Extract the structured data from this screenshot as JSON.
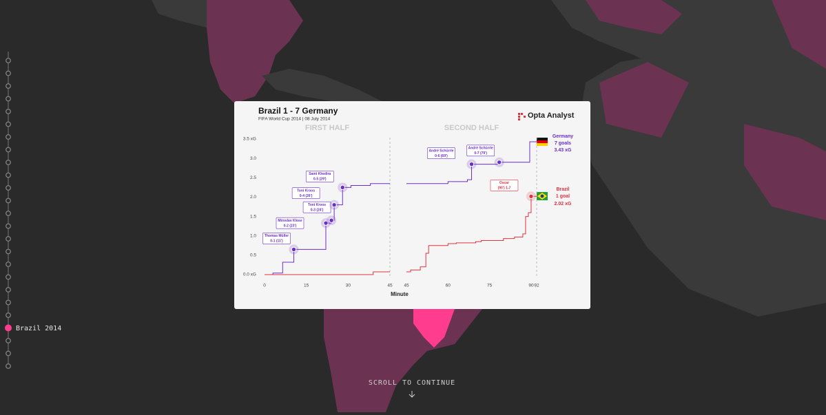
{
  "timeline": {
    "active_label": "Brazil 2014"
  },
  "card": {
    "title": "Brazil 1 - 7 Germany",
    "subtitle": "FIFA World Cup 2014 | 08 July 2014",
    "logo": "Opta Analyst",
    "x_label": "Minute"
  },
  "chart_data": [
    {
      "type": "line",
      "title": "FIRST HALF",
      "xlim": [
        0,
        45
      ],
      "xticks": [
        0,
        15,
        30,
        45
      ],
      "ylim": [
        0,
        3.5
      ],
      "yticks": [
        {
          "value": 0,
          "label": "0.0 xG"
        },
        0.5,
        {
          "value": 1,
          "label": "1.0"
        },
        1.5,
        {
          "value": 2,
          "label": "2.0"
        },
        2.5,
        {
          "value": 3,
          "label": "3.0"
        },
        {
          "value": 3.5,
          "label": "3.5 xG"
        }
      ],
      "series": [
        {
          "color": "#6a2fc7",
          "x": [
            0,
            3,
            6.5,
            10.5,
            22,
            24,
            25,
            28,
            31,
            38,
            45
          ],
          "values": [
            0,
            0.04,
            0.32,
            0.65,
            1.33,
            1.4,
            1.8,
            2.25,
            2.3,
            2.35,
            2.35
          ]
        },
        {
          "color": "#e0323f",
          "x": [
            0,
            39,
            45
          ],
          "values": [
            0,
            0.07,
            0.07
          ]
        }
      ],
      "annotations": [
        {
          "series": 0,
          "x": 10.5,
          "y": 0.65,
          "lines": [
            "Thomas Müller",
            "0-1 (11')"
          ]
        },
        {
          "series": 0,
          "x": 22,
          "y": 1.33,
          "lines": [
            "Miroslav Klose",
            "0-2 (23')"
          ]
        },
        {
          "series": 0,
          "x": 24,
          "y": 1.4,
          "lines": [
            "Toni Kroos",
            "0-3 (24')"
          ]
        },
        {
          "series": 0,
          "x": 25,
          "y": 1.8,
          "lines": [
            "Toni Kroos",
            "0-4 (26')"
          ]
        },
        {
          "series": 0,
          "x": 28,
          "y": 2.25,
          "lines": [
            "Sami Khedira",
            "0-5 (29')"
          ]
        }
      ]
    },
    {
      "type": "line",
      "title": "SECOND HALF",
      "xlim": [
        45,
        92
      ],
      "xticks": [
        45,
        60,
        75,
        90,
        92
      ],
      "ylim": [
        0,
        3.5
      ],
      "series": [
        {
          "name": "Germany",
          "summary": [
            "7 goals",
            "3.43 xG"
          ],
          "color": "#6a2fc7",
          "x": [
            45,
            60,
            67,
            68.5,
            78.5,
            89.5,
            92
          ],
          "values": [
            2.35,
            2.4,
            2.45,
            2.85,
            2.9,
            3.43,
            3.43
          ]
        },
        {
          "name": "Brazil",
          "summary": [
            "1 goal",
            "2.02 xG"
          ],
          "color": "#e0323f",
          "x": [
            45,
            46.5,
            50,
            52,
            53,
            60,
            63,
            70,
            72,
            80,
            84,
            87,
            88,
            89,
            90,
            92
          ],
          "values": [
            0.07,
            0.12,
            0.2,
            0.55,
            0.75,
            0.8,
            0.82,
            0.85,
            0.88,
            0.93,
            0.97,
            1.05,
            1.5,
            1.6,
            2.02,
            2.02
          ]
        }
      ],
      "annotations": [
        {
          "series": 0,
          "x": 68.5,
          "y": 2.85,
          "lines": [
            "André Schürrle",
            "0-6 (69')"
          ]
        },
        {
          "series": 0,
          "x": 78.5,
          "y": 2.9,
          "lines": [
            "André Schürrle",
            "0-7 (79')"
          ]
        },
        {
          "series": 1,
          "x": 90,
          "y": 2.02,
          "lines": [
            "Oscar",
            "(90') 1-7"
          ]
        }
      ]
    }
  ],
  "footer": {
    "scroll": "SCROLL TO CONTINUE"
  }
}
